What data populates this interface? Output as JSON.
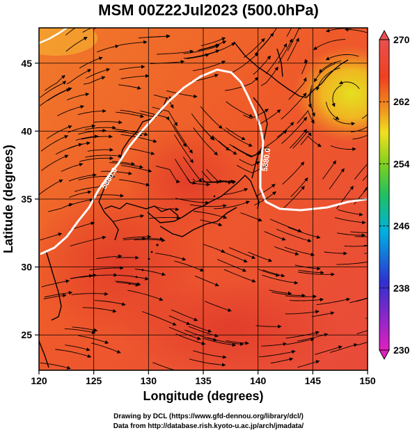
{
  "title": "MSM 00Z22Jul2023 (500.0hPa)",
  "x_axis": {
    "label": "Longitude (degrees)",
    "ticks": [
      "120",
      "125",
      "130",
      "135",
      "140",
      "145",
      "150"
    ],
    "range": [
      120,
      150
    ]
  },
  "y_axis": {
    "label": "Latitude  (degrees)",
    "ticks": [
      "25",
      "30",
      "35",
      "40",
      "45"
    ],
    "range": [
      22.4,
      47.6
    ]
  },
  "colorbar": {
    "ticks": [
      "270",
      "262",
      "254",
      "246",
      "238",
      "230"
    ],
    "range": [
      230,
      270
    ],
    "colors": [
      "#e020c0",
      "#3030d0",
      "#00b0e0",
      "#20c060",
      "#80d020",
      "#f0e020",
      "#f09020",
      "#f04020",
      "#e85050"
    ]
  },
  "contour_labels": [
    "5880.0",
    "5880.0"
  ],
  "credits": {
    "line1": "Drawing by DCL (https://www.gfd-dennou.org/library/dcl/)",
    "line2": "Data from http://database.rish.kyoto-u.ac.jp/arch/jmadata/"
  }
}
